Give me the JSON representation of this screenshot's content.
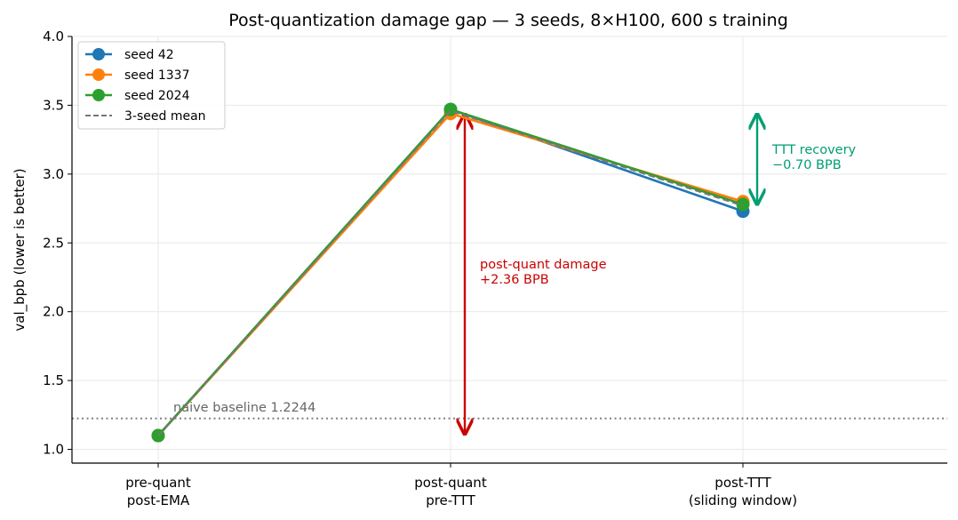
{
  "chart_data": {
    "type": "line",
    "title": "Post-quantization damage gap — 3 seeds, 8×H100, 600 s training",
    "ylabel": "val_bpb (lower is better)",
    "xlabel": "",
    "ylim": [
      0.9,
      4.0
    ],
    "yticks": [
      1.0,
      1.5,
      2.0,
      2.5,
      3.0,
      3.5,
      4.0
    ],
    "ytick_labels": [
      "1.0",
      "1.5",
      "2.0",
      "2.5",
      "3.0",
      "3.5",
      "4.0"
    ],
    "grid": true,
    "legend_position": "top-left",
    "categories": [
      [
        "pre-quant",
        "post-EMA"
      ],
      [
        "post-quant",
        "pre-TTT"
      ],
      [
        "post-TTT",
        "(sliding window)"
      ]
    ],
    "series": [
      {
        "name": "seed 42",
        "values": [
          1.1,
          3.47,
          2.73
        ],
        "color": "#1f77b4",
        "style": "solid"
      },
      {
        "name": "seed 1337",
        "values": [
          1.1,
          3.44,
          2.8
        ],
        "color": "#ff7f0e",
        "style": "solid"
      },
      {
        "name": "seed 2024",
        "values": [
          1.1,
          3.47,
          2.78
        ],
        "color": "#2ca02c",
        "style": "solid"
      },
      {
        "name": "3-seed mean",
        "values": [
          1.1,
          3.46,
          2.77
        ],
        "color": "#777777",
        "style": "dashed"
      }
    ],
    "baseline": {
      "label": "naive baseline 1.2244",
      "value": 1.2244,
      "color": "#808080"
    },
    "annotations": [
      {
        "lines": [
          "post-quant damage",
          "+2.36 BPB"
        ],
        "color": "#cc0000",
        "arrow_x_index": 1,
        "arrow_from": 1.1,
        "arrow_to": 3.46
      },
      {
        "lines": [
          "TTT recovery",
          "−0.70 BPB"
        ],
        "color": "#009e73",
        "arrow_x_index": 2,
        "arrow_from": 2.77,
        "arrow_to": 3.46
      }
    ]
  }
}
